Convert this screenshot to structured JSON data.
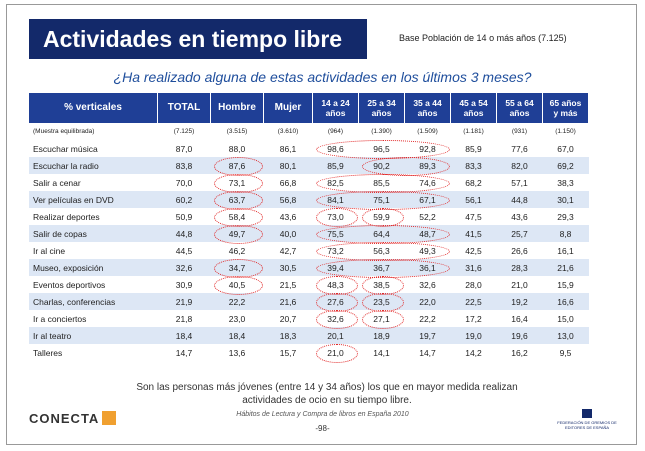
{
  "title": "Actividades en tiempo libre",
  "base": "Base Población de 14 o más años (7.125)",
  "question": "¿Ha realizado alguna de estas actividades en los últimos 3 meses?",
  "table": {
    "header": [
      "% verticales",
      "TOTAL",
      "Hombre",
      "Mujer",
      "14 a 24 años",
      "25 a 34 años",
      "35 a 44 años",
      "45 a 54 años",
      "55 a 64 años",
      "65 años y más"
    ],
    "rows": [
      [
        "(Muestra equilibrada)",
        "(7.125)",
        "(3.515)",
        "(3.610)",
        "(964)",
        "(1.390)",
        "(1.509)",
        "(1.181)",
        "(931)",
        "(1.150)"
      ],
      [
        "Escuchar música",
        "87,0",
        "88,0",
        "86,1",
        "98,6",
        "96,5",
        "92,8",
        "85,9",
        "77,6",
        "67,0"
      ],
      [
        "Escuchar la radio",
        "83,8",
        "87,6",
        "80,1",
        "85,9",
        "90,2",
        "89,3",
        "83,3",
        "82,0",
        "69,2"
      ],
      [
        "Salir a cenar",
        "70,0",
        "73,1",
        "66,8",
        "82,5",
        "85,5",
        "74,6",
        "68,2",
        "57,1",
        "38,3"
      ],
      [
        "Ver películas en DVD",
        "60,2",
        "63,7",
        "56,8",
        "84,1",
        "75,1",
        "67,1",
        "56,1",
        "44,8",
        "30,1"
      ],
      [
        "Realizar deportes",
        "50,9",
        "58,4",
        "43,6",
        "73,0",
        "59,9",
        "52,2",
        "47,5",
        "43,6",
        "29,3"
      ],
      [
        "Salir de copas",
        "44,8",
        "49,7",
        "40,0",
        "75,5",
        "64,4",
        "48,7",
        "41,5",
        "25,7",
        "8,8"
      ],
      [
        "Ir al cine",
        "44,5",
        "46,2",
        "42,7",
        "73,2",
        "56,3",
        "49,3",
        "42,5",
        "26,6",
        "16,1"
      ],
      [
        "Museo, exposición",
        "32,6",
        "34,7",
        "30,5",
        "39,4",
        "36,7",
        "36,1",
        "31,6",
        "28,3",
        "21,6"
      ],
      [
        "Eventos deportivos",
        "30,9",
        "40,5",
        "21,5",
        "48,3",
        "38,5",
        "32,6",
        "28,0",
        "21,0",
        "15,9"
      ],
      [
        "Charlas, conferencias",
        "21,9",
        "22,2",
        "21,6",
        "27,6",
        "23,5",
        "22,0",
        "22,5",
        "19,2",
        "16,6"
      ],
      [
        "Ir a conciertos",
        "21,8",
        "23,0",
        "20,7",
        "32,6",
        "27,1",
        "22,2",
        "17,2",
        "16,4",
        "15,0"
      ],
      [
        "Ir al teatro",
        "18,4",
        "18,4",
        "18,3",
        "20,1",
        "18,9",
        "19,7",
        "19,0",
        "19,6",
        "13,0"
      ],
      [
        "Talleres",
        "14,7",
        "13,6",
        "15,7",
        "21,0",
        "14,1",
        "14,7",
        "14,2",
        "16,2",
        "9,5"
      ]
    ]
  },
  "conclusion": "Son las personas más jóvenes (entre 14 y 34 años) los que en mayor medida realizan actividades de ocio en su tiempo libre.",
  "source": "Hábitos de Lectura y Compra de libros en España 2010",
  "page": "-98-",
  "logo_left": "CONECTA",
  "logo_right": "FEDERACIÓN DE GREMIOS DE EDITORES DE ESPAÑA"
}
